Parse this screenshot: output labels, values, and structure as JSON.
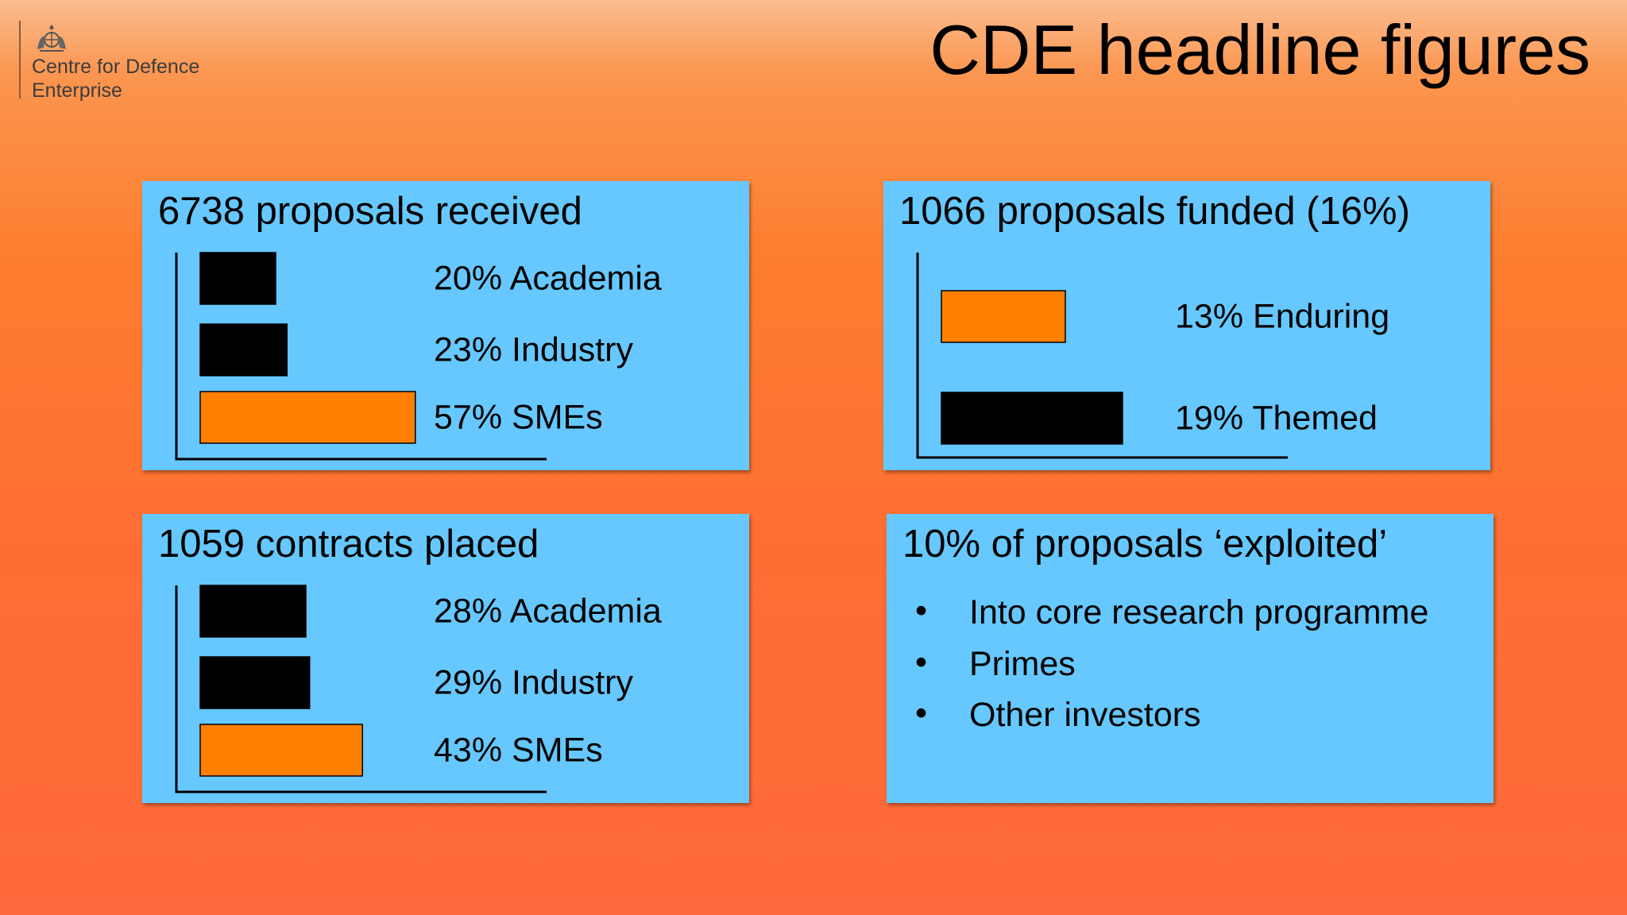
{
  "logo": {
    "line1": "Centre for Defence",
    "line2": "Enterprise",
    "crest_icon": "royal-crest-icon"
  },
  "title": "CDE headline figures",
  "colors": {
    "highlight_bar": "#ff7f00",
    "dark_bar": "#000000",
    "card_bg": "#66c8ff"
  },
  "cards": {
    "proposals_received": {
      "title": "6738 proposals received"
    },
    "proposals_funded": {
      "title": "1066 proposals funded (16%)"
    },
    "contracts_placed": {
      "title": "1059 contracts placed"
    },
    "exploited": {
      "title": "10% of proposals ‘exploited’",
      "bullet_glyph": "•",
      "items": [
        "Into core research programme",
        "Primes",
        "Other investors"
      ]
    }
  },
  "chart_data": [
    {
      "type": "bar",
      "title": "6738 proposals received",
      "categories": [
        "Academia",
        "Industry",
        "SMEs"
      ],
      "values": [
        20,
        23,
        57
      ],
      "labels": [
        "20% Academia",
        "23% Industry",
        "57% SMEs"
      ],
      "highlight": [
        false,
        false,
        true
      ]
    },
    {
      "type": "bar",
      "title": "1066 proposals funded (16%)",
      "categories": [
        "Enduring",
        "Themed"
      ],
      "values": [
        13,
        19
      ],
      "labels": [
        "13% Enduring",
        "19% Themed"
      ],
      "highlight": [
        true,
        false
      ]
    },
    {
      "type": "bar",
      "title": "1059 contracts placed",
      "categories": [
        "Academia",
        "Industry",
        "SMEs"
      ],
      "values": [
        28,
        29,
        43
      ],
      "labels": [
        "28% Academia",
        "29% Industry",
        "43% SMEs"
      ],
      "highlight": [
        false,
        false,
        true
      ]
    }
  ]
}
